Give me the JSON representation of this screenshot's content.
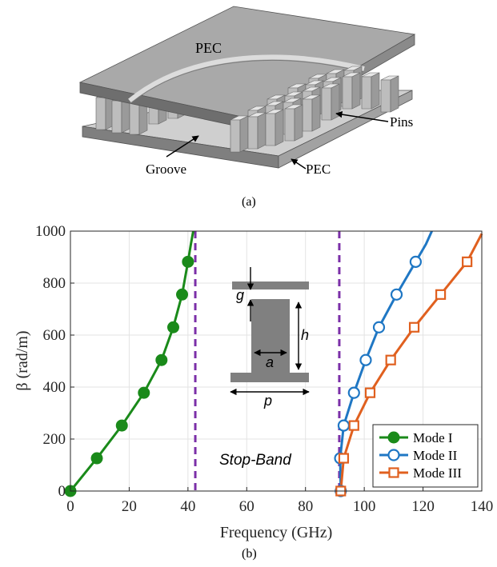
{
  "panel_a": {
    "caption": "(a)",
    "labels": {
      "pec_top": "PEC",
      "pins": "Pins",
      "groove": "Groove",
      "pec_bottom": "PEC"
    }
  },
  "panel_b": {
    "caption": "(b)",
    "inset": {
      "g": "g",
      "h": "h",
      "a": "a",
      "p": "p"
    }
  },
  "colors": {
    "mode1": "#1a8a1a",
    "mode2": "#1f77c4",
    "mode3": "#e0601f",
    "stopband_line": "#7b2fa8",
    "pec": "#8c8c8c",
    "pin": "#bdbdbd"
  },
  "chart_data": {
    "type": "line",
    "title": "",
    "xlabel": "Frequency (GHz)",
    "ylabel": "β (rad/m)",
    "xlim": [
      0,
      140
    ],
    "ylim": [
      0,
      1000
    ],
    "xticks": [
      0,
      20,
      40,
      60,
      80,
      100,
      120,
      140
    ],
    "yticks": [
      0,
      200,
      400,
      600,
      800,
      1000
    ],
    "grid": true,
    "legend_position": "bottom-right",
    "annotation": "Stop-Band",
    "stopband_lines": [
      42.5,
      91.5
    ],
    "series": [
      {
        "name": "Mode I",
        "marker": "filled-circle",
        "curve": [
          [
            0,
            0
          ],
          [
            9,
            126
          ],
          [
            17.5,
            252
          ],
          [
            25,
            378
          ],
          [
            31,
            504
          ],
          [
            35,
            630
          ],
          [
            38,
            756
          ],
          [
            40,
            882
          ],
          [
            41,
            950
          ],
          [
            41.8,
            1000
          ]
        ],
        "markers": [
          [
            0,
            0
          ],
          [
            9,
            126
          ],
          [
            17.5,
            252
          ],
          [
            25,
            378
          ],
          [
            31,
            504
          ],
          [
            35,
            630
          ],
          [
            38,
            756
          ],
          [
            40,
            882
          ]
        ]
      },
      {
        "name": "Mode II",
        "marker": "open-circle",
        "curve": [
          [
            92,
            0
          ],
          [
            91.8,
            126
          ],
          [
            93,
            252
          ],
          [
            96.5,
            378
          ],
          [
            100.5,
            504
          ],
          [
            105,
            630
          ],
          [
            111,
            756
          ],
          [
            117.5,
            882
          ],
          [
            121,
            950
          ],
          [
            123,
            1000
          ]
        ],
        "markers": [
          [
            92,
            0
          ],
          [
            91.8,
            126
          ],
          [
            93,
            252
          ],
          [
            96.5,
            378
          ],
          [
            100.5,
            504
          ],
          [
            105,
            630
          ],
          [
            111,
            756
          ],
          [
            117.5,
            882
          ]
        ]
      },
      {
        "name": "Mode III",
        "marker": "open-square",
        "curve": [
          [
            92,
            0
          ],
          [
            93,
            126
          ],
          [
            96.5,
            252
          ],
          [
            102,
            378
          ],
          [
            109,
            504
          ],
          [
            117,
            630
          ],
          [
            126,
            756
          ],
          [
            135,
            882
          ],
          [
            140,
            990
          ]
        ],
        "markers": [
          [
            92,
            0
          ],
          [
            93,
            126
          ],
          [
            96.5,
            252
          ],
          [
            102,
            378
          ],
          [
            109,
            504
          ],
          [
            117,
            630
          ],
          [
            126,
            756
          ],
          [
            135,
            882
          ]
        ]
      }
    ]
  }
}
